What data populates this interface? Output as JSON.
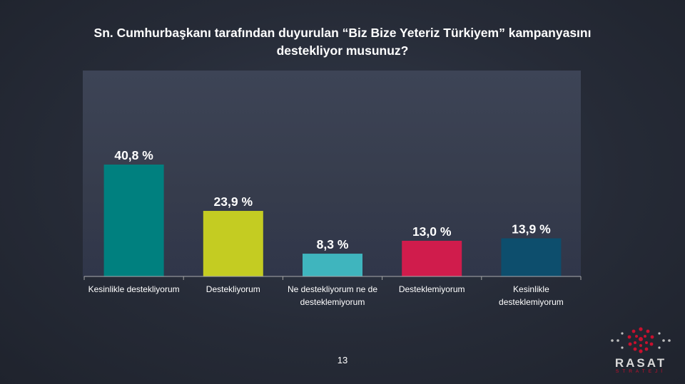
{
  "page": {
    "title": "Sn. Cumhurbaşkanı tarafından duyurulan “Biz Bize Yeteriz Türkiyem” kampanyasını destekliyor musunuz?",
    "page_number": "13"
  },
  "logo": {
    "name": "RASAT",
    "subtitle": "STRATEJİ",
    "accent": "#c8102e"
  },
  "chart_data": {
    "type": "bar",
    "title": "Sn. Cumhurbaşkanı tarafından duyurulan “Biz Bize Yeteriz Türkiyem” kampanyasını destekliyor musunuz?",
    "categories": [
      "Kesinlikle destekliyorum",
      "Destekliyorum",
      "Ne destekliyorum ne de desteklemiyorum",
      "Desteklemiyorum",
      "Kesinlikle desteklemiyorum"
    ],
    "category_lines": [
      [
        "Kesinlikle destekliyorum"
      ],
      [
        "Destekliyorum"
      ],
      [
        "Ne destekliyorum ne de",
        "desteklemiyorum"
      ],
      [
        "Desteklemiyorum"
      ],
      [
        "Kesinlikle",
        "desteklemiyorum"
      ]
    ],
    "values": [
      40.8,
      23.9,
      8.3,
      13.0,
      13.9
    ],
    "value_labels": [
      "40,8 %",
      "23,9 %",
      "8,3 %",
      "13,0 %",
      "13,9 %"
    ],
    "colors": [
      "#00807f",
      "#c4cc22",
      "#3fb5be",
      "#d01c4c",
      "#0d4e6d"
    ],
    "xlabel": "",
    "ylabel": "",
    "ylim": [
      0,
      40.8
    ],
    "grid": false,
    "legend": "none"
  }
}
